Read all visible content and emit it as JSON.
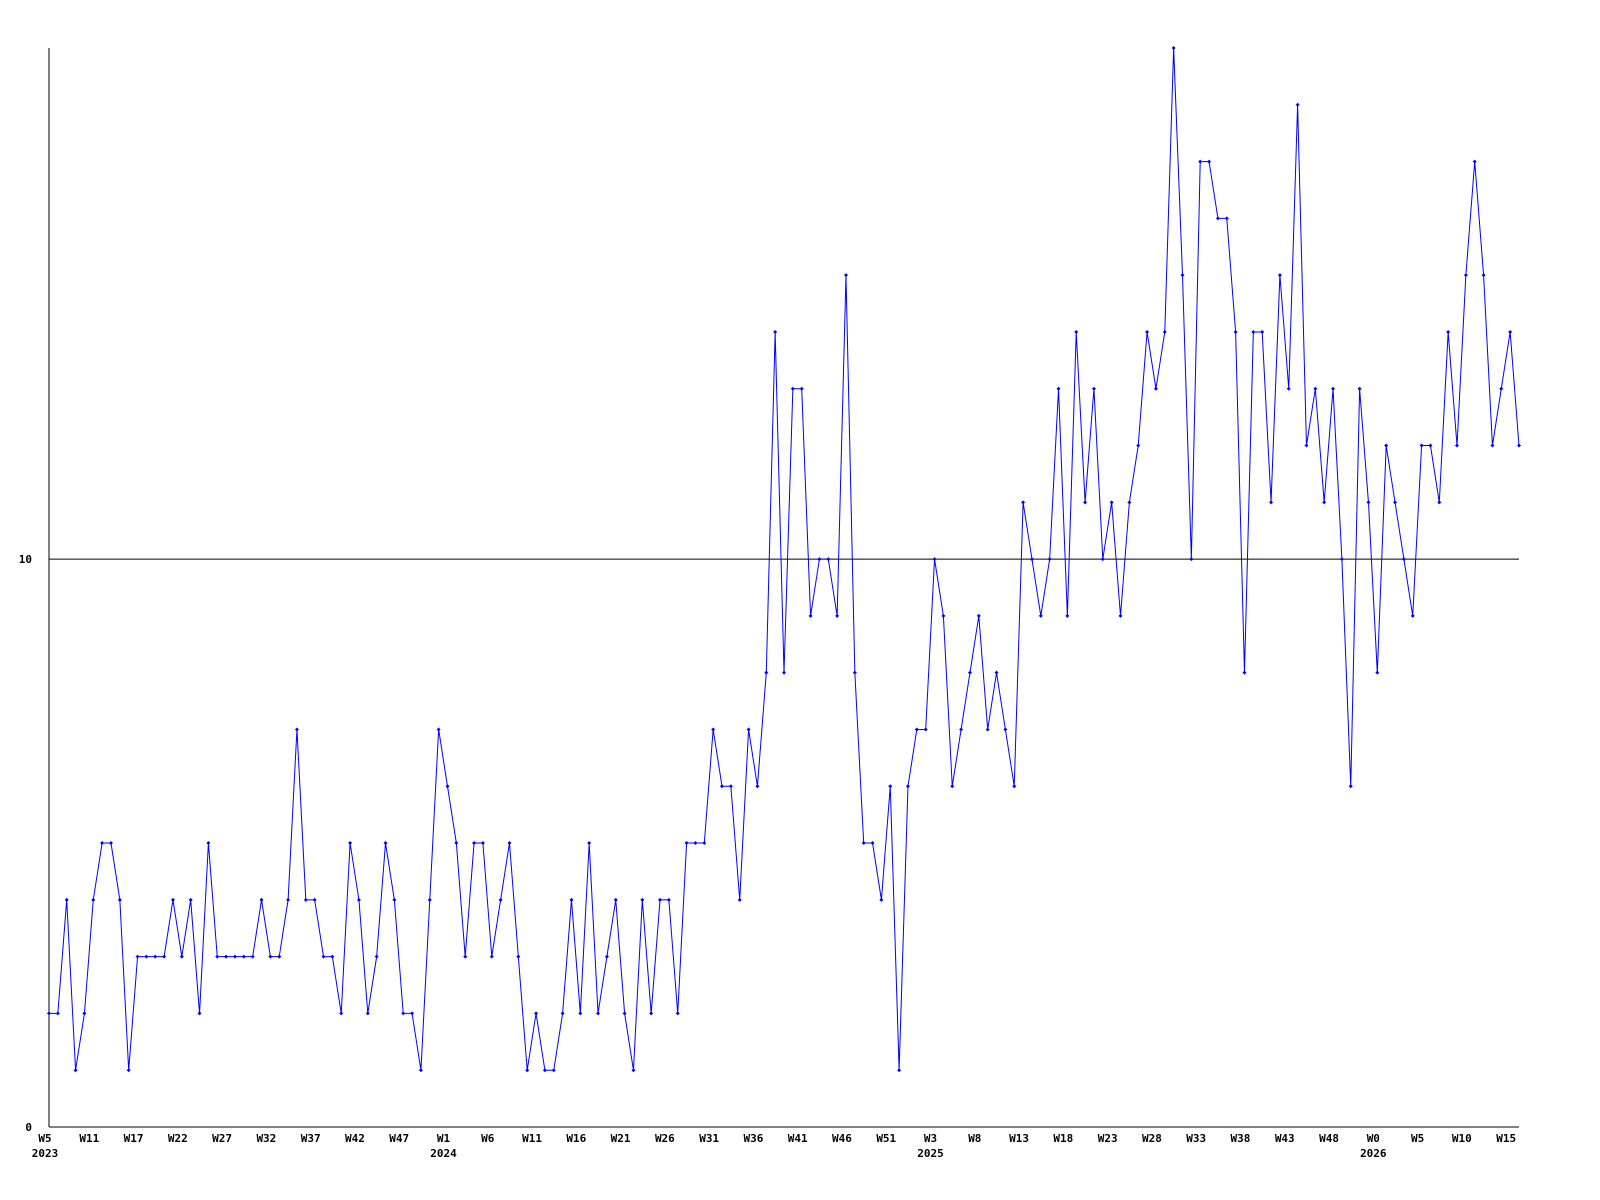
{
  "chart_data": {
    "type": "line",
    "categories": [
      "W5",
      null,
      null,
      null,
      null,
      "W11",
      null,
      null,
      null,
      null,
      "W17",
      null,
      null,
      null,
      null,
      "W22",
      null,
      null,
      null,
      null,
      "W27",
      null,
      null,
      null,
      null,
      "W32",
      null,
      null,
      null,
      null,
      "W37",
      null,
      null,
      null,
      null,
      "W42",
      null,
      null,
      null,
      null,
      "W47",
      null,
      null,
      null,
      null,
      "W1",
      null,
      null,
      null,
      null,
      "W6",
      null,
      null,
      null,
      null,
      "W11",
      null,
      null,
      null,
      null,
      "W16",
      null,
      null,
      null,
      null,
      "W21",
      null,
      null,
      null,
      null,
      "W26",
      null,
      null,
      null,
      null,
      "W31",
      null,
      null,
      null,
      null,
      "W36",
      null,
      null,
      null,
      null,
      "W41",
      null,
      null,
      null,
      null,
      "W46",
      null,
      null,
      null,
      null,
      "W51",
      null,
      null,
      null,
      null,
      "W3",
      null,
      null,
      null,
      null,
      "W8",
      null,
      null,
      null,
      null,
      "W13",
      null,
      null,
      null,
      null,
      "W18",
      null,
      null,
      null,
      null,
      "W23",
      null,
      null,
      null,
      null,
      "W28",
      null,
      null,
      null,
      null,
      "W33",
      null,
      null,
      null,
      null,
      "W38",
      null,
      null,
      null,
      null,
      "W43",
      null,
      null,
      null,
      null,
      "W48",
      null,
      null,
      null,
      null,
      "W0",
      null,
      null,
      null,
      null,
      "W5",
      null,
      null,
      null,
      null,
      "W10",
      null,
      null,
      null,
      null,
      "W15",
      null
    ],
    "category_years": [
      "2023",
      null,
      null,
      null,
      null,
      null,
      null,
      null,
      null,
      null,
      null,
      null,
      null,
      null,
      null,
      null,
      null,
      null,
      null,
      null,
      null,
      null,
      null,
      null,
      null,
      null,
      null,
      null,
      null,
      null,
      null,
      null,
      null,
      null,
      null,
      null,
      null,
      null,
      null,
      null,
      null,
      null,
      null,
      null,
      null,
      "2024",
      null,
      null,
      null,
      null,
      null,
      null,
      null,
      null,
      null,
      null,
      null,
      null,
      null,
      null,
      null,
      null,
      null,
      null,
      null,
      null,
      null,
      null,
      null,
      null,
      null,
      null,
      null,
      null,
      null,
      null,
      null,
      null,
      null,
      null,
      null,
      null,
      null,
      null,
      null,
      null,
      null,
      null,
      null,
      null,
      null,
      null,
      null,
      null,
      null,
      null,
      null,
      null,
      null,
      null,
      "2025",
      null,
      null,
      null,
      null,
      null,
      null,
      null,
      null,
      null,
      null,
      null,
      null,
      null,
      null,
      null,
      null,
      null,
      null,
      null,
      null,
      null,
      null,
      null,
      null,
      null,
      null,
      null,
      null,
      null,
      null,
      null,
      null,
      null,
      null,
      null,
      null,
      null,
      null,
      null,
      null,
      null,
      null,
      null,
      null,
      null,
      null,
      null,
      null,
      null,
      "2026",
      null,
      null,
      null,
      null,
      null,
      null,
      null,
      null,
      null,
      null,
      null,
      null,
      null,
      null,
      null,
      null
    ],
    "series": [
      {
        "color": "#0000ff",
        "values": [
          2,
          2,
          4,
          1,
          2,
          4,
          5,
          5,
          4,
          1,
          3,
          3,
          3,
          3,
          4,
          3,
          4,
          2,
          5,
          3,
          3,
          3,
          3,
          3,
          4,
          3,
          3,
          4,
          7,
          4,
          4,
          3,
          3,
          2,
          5,
          4,
          2,
          3,
          5,
          4,
          2,
          2,
          1,
          4,
          7,
          6,
          5,
          3,
          5,
          5,
          3,
          4,
          5,
          3,
          1,
          2,
          1,
          1,
          2,
          4,
          2,
          5,
          2,
          3,
          4,
          2,
          1,
          4,
          2,
          4,
          4,
          2,
          5,
          5,
          5,
          7,
          6,
          6,
          4,
          7,
          6,
          8,
          14,
          8,
          13,
          13,
          9,
          10,
          10,
          9,
          15,
          8,
          5,
          5,
          4,
          6,
          1,
          6,
          7,
          7,
          10,
          9,
          6,
          7,
          8,
          9,
          7,
          8,
          7,
          6,
          11,
          10,
          9,
          10,
          13,
          9,
          14,
          11,
          13,
          10,
          11,
          9,
          11,
          12,
          14,
          13,
          14,
          19,
          15,
          10,
          17,
          17,
          16,
          16,
          14,
          8,
          14,
          14,
          11,
          15,
          13,
          18,
          12,
          13,
          11,
          13,
          10,
          6,
          13,
          11,
          8,
          12,
          11,
          10,
          9,
          12,
          12,
          11,
          14,
          12,
          15,
          17,
          15,
          12,
          13,
          14,
          12
        ]
      }
    ],
    "ylim": [
      0,
      19
    ],
    "yticks": [
      0,
      10
    ],
    "grid": true
  }
}
